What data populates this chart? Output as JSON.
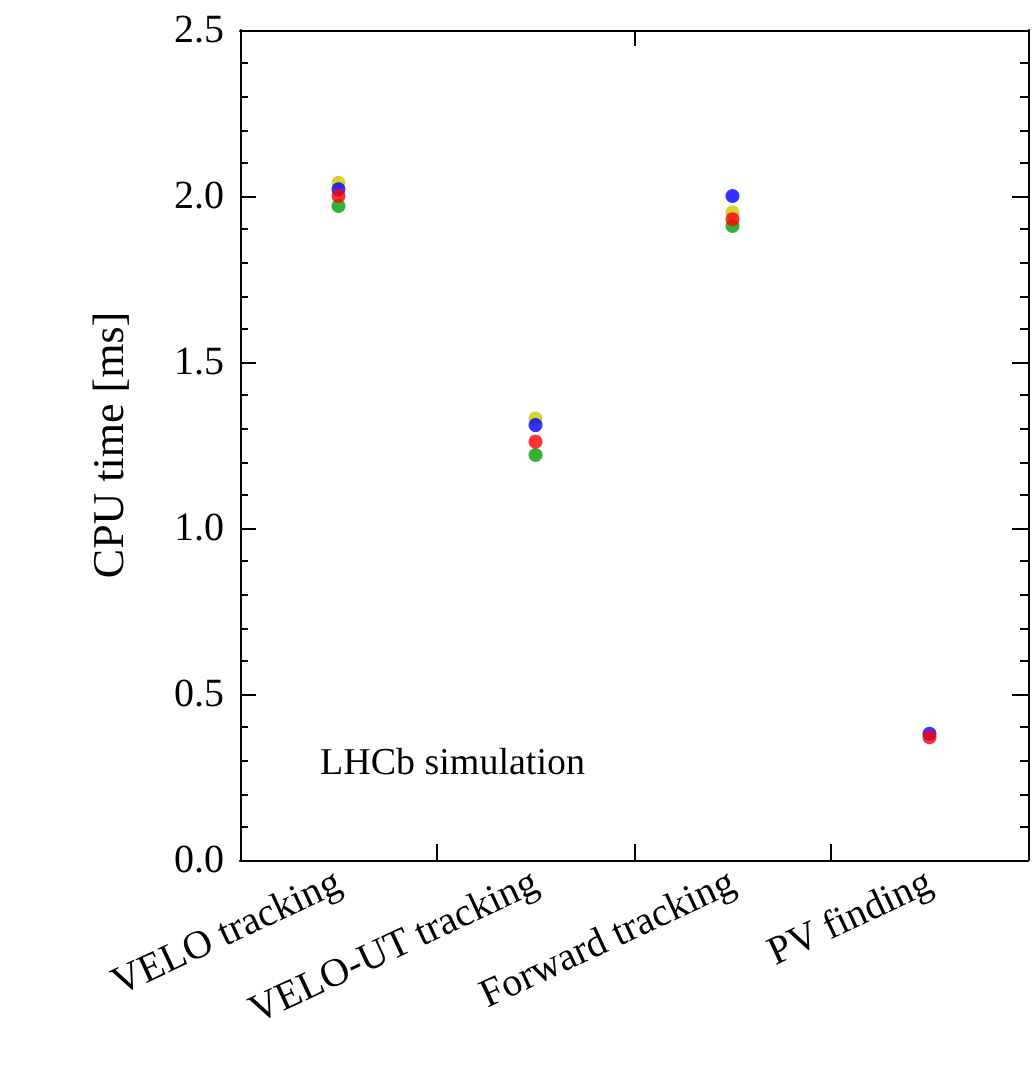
{
  "chart_data": {
    "type": "scatter",
    "ylabel": "CPU time [ms]",
    "categories": [
      "VELO tracking",
      "VELO-UT tracking",
      "Forward tracking",
      "PV finding"
    ],
    "series": [
      {
        "color": "#c8c800",
        "values": [
          2.04,
          1.33,
          1.95,
          null
        ]
      },
      {
        "color": "#00a000",
        "values": [
          1.97,
          1.22,
          1.91,
          null
        ]
      },
      {
        "color": "#0000ff",
        "values": [
          2.02,
          1.31,
          2.0,
          0.38
        ]
      },
      {
        "color": "#ff0000",
        "values": [
          2.0,
          1.26,
          1.93,
          0.37
        ]
      }
    ],
    "ylim": [
      0,
      2.5
    ],
    "yticks": [
      {
        "value": 0,
        "label": "0.0"
      },
      0.5,
      {
        "value": 1,
        "label": "1.0"
      },
      1.5,
      {
        "value": 2,
        "label": "2.0"
      },
      2.5
    ],
    "marker": "circle",
    "grid": false,
    "annotations": [
      "LHCb simulation"
    ]
  }
}
